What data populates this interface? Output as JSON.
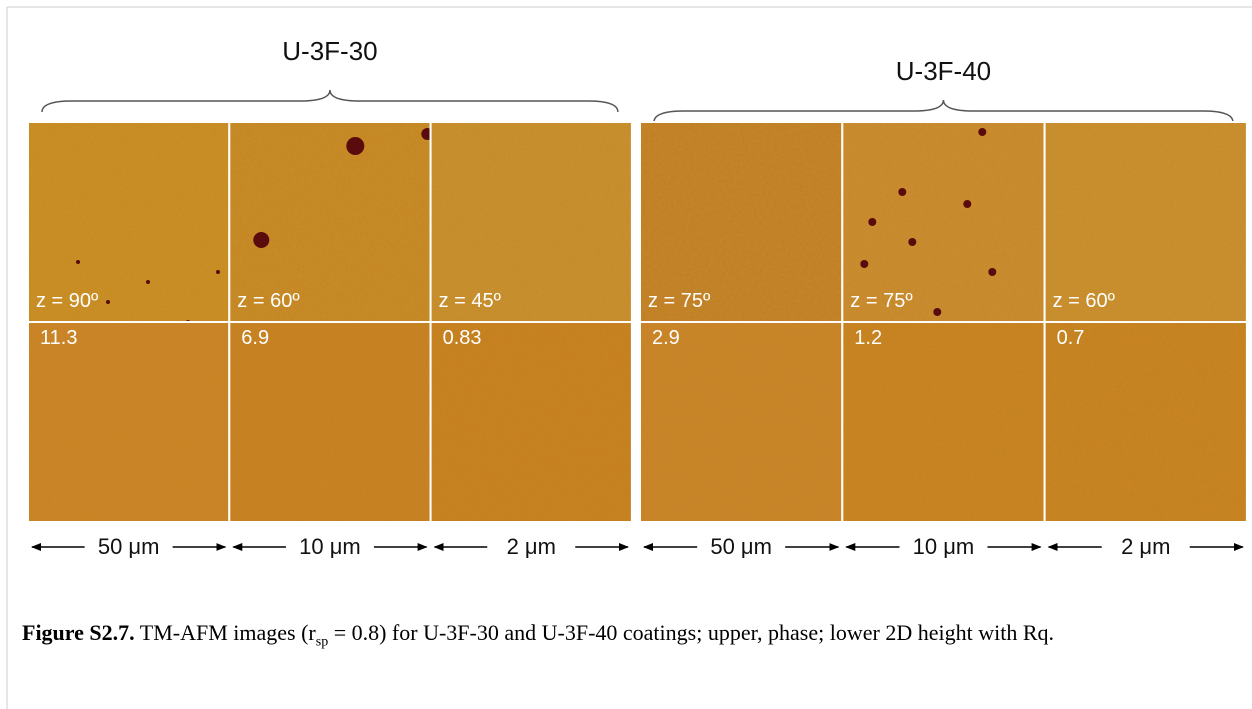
{
  "figure": {
    "groups": [
      {
        "label": "U-3F-30",
        "panels": [
          {
            "phase_label": "z = 90º",
            "height_label": "11.3",
            "scale": "50 μm"
          },
          {
            "phase_label": "z = 60º",
            "height_label": "6.9",
            "scale": "10 μm"
          },
          {
            "phase_label": "z = 45º",
            "height_label": "0.83",
            "scale": "2 μm"
          }
        ]
      },
      {
        "label": "U-3F-40",
        "panels": [
          {
            "phase_label": "z = 75º",
            "height_label": "2.9",
            "scale": "50 μm"
          },
          {
            "phase_label": "z = 75º",
            "height_label": "1.2",
            "scale": "10 μm"
          },
          {
            "phase_label": "z = 60º",
            "height_label": "0.7",
            "scale": "2 μm"
          }
        ]
      }
    ]
  },
  "caption": {
    "label": "Figure S2.7.",
    "text_before": "TM-AFM images (r",
    "subscript": "sp",
    "text_after": " = 0.8) for U-3F-30 and U-3F-40 coatings; upper, phase; lower 2D height with Rq."
  }
}
